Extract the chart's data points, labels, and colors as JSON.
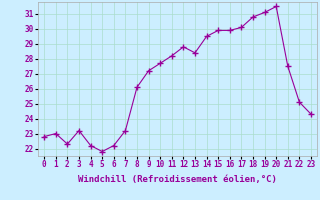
{
  "x": [
    0,
    1,
    2,
    3,
    4,
    5,
    6,
    7,
    8,
    9,
    10,
    11,
    12,
    13,
    14,
    15,
    16,
    17,
    18,
    19,
    20,
    21,
    22,
    23
  ],
  "y": [
    22.8,
    23.0,
    22.3,
    23.2,
    22.2,
    21.8,
    22.2,
    23.2,
    26.1,
    27.2,
    27.7,
    28.2,
    28.8,
    28.4,
    29.5,
    29.9,
    29.9,
    30.1,
    30.8,
    31.1,
    31.5,
    27.5,
    25.1,
    24.3
  ],
  "line_color": "#990099",
  "marker": "+",
  "markersize": 4,
  "linewidth": 0.8,
  "bg_color": "#cceeff",
  "grid_color": "#aaddcc",
  "xlabel": "Windchill (Refroidissement éolien,°C)",
  "xlabel_fontsize": 6.5,
  "tick_color": "#990099",
  "ylabel_ticks": [
    22,
    23,
    24,
    25,
    26,
    27,
    28,
    29,
    30,
    31
  ],
  "xlim": [
    -0.5,
    23.5
  ],
  "ylim": [
    21.5,
    31.8
  ],
  "tick_fontsize": 5.5,
  "xtick_labels": [
    "0",
    "1",
    "2",
    "3",
    "4",
    "5",
    "6",
    "7",
    "8",
    "9",
    "10",
    "11",
    "12",
    "13",
    "14",
    "15",
    "16",
    "17",
    "18",
    "19",
    "20",
    "21",
    "22",
    "23"
  ]
}
